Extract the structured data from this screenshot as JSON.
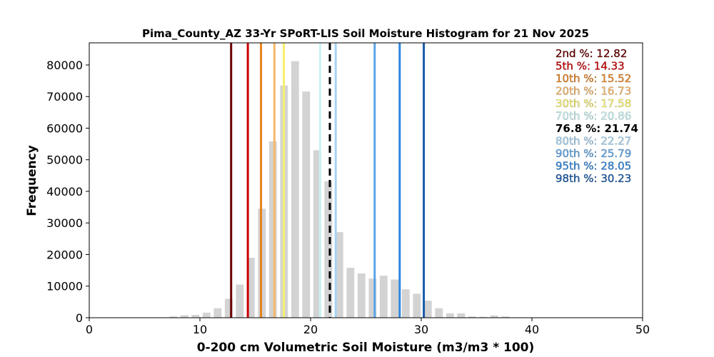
{
  "chart_data": {
    "type": "bar",
    "title": "Pima_County_AZ 33-Yr SPoRT-LIS Soil Moisture Histogram for 21 Nov 2025",
    "xlabel": "0-200 cm Volumetric Soil Moisture (m3/m3 * 100)",
    "ylabel": "Frequency",
    "xlim": [
      0,
      50
    ],
    "ylim": [
      0,
      87000
    ],
    "xticks": [
      0,
      10,
      20,
      30,
      40,
      50
    ],
    "yticks": [
      0,
      10000,
      20000,
      30000,
      40000,
      50000,
      60000,
      70000,
      80000
    ],
    "bar_color": "#d3d3d3",
    "bins": [
      {
        "x": 7.6,
        "count": 400
      },
      {
        "x": 8.6,
        "count": 800
      },
      {
        "x": 9.6,
        "count": 900
      },
      {
        "x": 10.6,
        "count": 1600
      },
      {
        "x": 11.6,
        "count": 3000
      },
      {
        "x": 12.6,
        "count": 6000
      },
      {
        "x": 13.6,
        "count": 10500
      },
      {
        "x": 14.6,
        "count": 19000
      },
      {
        "x": 15.6,
        "count": 34500
      },
      {
        "x": 16.6,
        "count": 55800
      },
      {
        "x": 17.6,
        "count": 73500
      },
      {
        "x": 18.6,
        "count": 81200
      },
      {
        "x": 19.6,
        "count": 71600
      },
      {
        "x": 20.6,
        "count": 53000
      },
      {
        "x": 21.6,
        "count": 43200
      },
      {
        "x": 22.6,
        "count": 27100
      },
      {
        "x": 23.6,
        "count": 15800
      },
      {
        "x": 24.6,
        "count": 14000
      },
      {
        "x": 25.6,
        "count": 12400
      },
      {
        "x": 26.6,
        "count": 13300
      },
      {
        "x": 27.6,
        "count": 12100
      },
      {
        "x": 28.6,
        "count": 9000
      },
      {
        "x": 29.6,
        "count": 7600
      },
      {
        "x": 30.6,
        "count": 5400
      },
      {
        "x": 31.6,
        "count": 3000
      },
      {
        "x": 32.6,
        "count": 1400
      },
      {
        "x": 33.6,
        "count": 1400
      },
      {
        "x": 34.6,
        "count": 400
      },
      {
        "x": 35.6,
        "count": 300
      },
      {
        "x": 36.6,
        "count": 700
      },
      {
        "x": 37.6,
        "count": 400
      }
    ],
    "percentiles": [
      {
        "label": "2nd %: 12.82",
        "value": 12.82,
        "color": "#6b0000",
        "dashed": false,
        "bold": false
      },
      {
        "label": "5th %: 14.33",
        "value": 14.33,
        "color": "#cc0000",
        "dashed": false,
        "bold": false
      },
      {
        "label": "10th %: 15.52",
        "value": 15.52,
        "color": "#e8821e",
        "dashed": false,
        "bold": false
      },
      {
        "label": "20th %: 16.73",
        "value": 16.73,
        "color": "#f5b86a",
        "dashed": false,
        "bold": false
      },
      {
        "label": "30th %: 17.58",
        "value": 17.58,
        "color": "#f7f06a",
        "dashed": false,
        "bold": false
      },
      {
        "label": "70th %: 20.86",
        "value": 20.86,
        "color": "#c9f2f2",
        "dashed": false,
        "bold": false
      },
      {
        "label": "76.8 %: 21.74",
        "value": 21.74,
        "color": "#000000",
        "dashed": true,
        "bold": true
      },
      {
        "label": "80th %: 22.27",
        "value": 22.27,
        "color": "#a6d4f2",
        "dashed": false,
        "bold": false
      },
      {
        "label": "90th %: 25.79",
        "value": 25.79,
        "color": "#5aa5e6",
        "dashed": false,
        "bold": false
      },
      {
        "label": "95th %: 28.05",
        "value": 28.05,
        "color": "#2d86dd",
        "dashed": false,
        "bold": false
      },
      {
        "label": "98th %: 30.23",
        "value": 30.23,
        "color": "#1a5aa8",
        "dashed": false,
        "bold": false
      }
    ],
    "legend_placement": "top-right",
    "grid": false
  }
}
